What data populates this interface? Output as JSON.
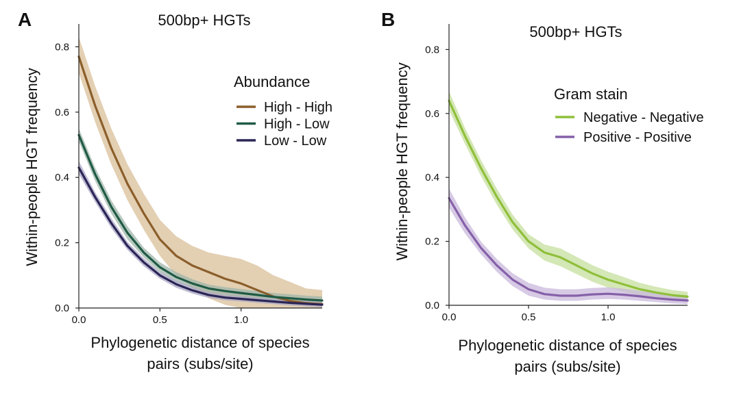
{
  "chart_data": [
    {
      "panel": "A",
      "type": "line",
      "title": "500bp+ HGTs",
      "xlabel_lines": [
        "Phylogenetic distance of species",
        "pairs (subs/site)"
      ],
      "ylabel": "Within-people HGT frequency",
      "xlim": [
        0,
        1.5
      ],
      "ylim": [
        0,
        0.87
      ],
      "xticks": [
        0.0,
        0.5,
        1.0
      ],
      "xtick_labels": [
        "0.0",
        "0.5",
        "1.0"
      ],
      "yticks": [
        0.0,
        0.2,
        0.4,
        0.6,
        0.8
      ],
      "ytick_labels": [
        "0.0",
        "0.2",
        "0.4",
        "0.6",
        "0.8"
      ],
      "grid": false,
      "legend": {
        "title": "Abundance",
        "position": "upper-right"
      },
      "x": [
        0.0,
        0.1,
        0.2,
        0.3,
        0.4,
        0.5,
        0.6,
        0.7,
        0.8,
        0.9,
        1.0,
        1.1,
        1.2,
        1.3,
        1.4,
        1.5
      ],
      "series": [
        {
          "name": "High - High",
          "color": "#8b5e2b",
          "band_color": "#d9bf98",
          "values": [
            0.77,
            0.62,
            0.49,
            0.38,
            0.29,
            0.21,
            0.16,
            0.13,
            0.11,
            0.09,
            0.075,
            0.055,
            0.035,
            0.022,
            0.015,
            0.012
          ],
          "lower": [
            0.72,
            0.57,
            0.44,
            0.33,
            0.24,
            0.16,
            0.1,
            0.06,
            0.03,
            0.01,
            0.0,
            0.0,
            0.0,
            0.0,
            0.0,
            0.0
          ],
          "upper": [
            0.83,
            0.68,
            0.55,
            0.44,
            0.35,
            0.27,
            0.22,
            0.19,
            0.17,
            0.16,
            0.15,
            0.13,
            0.1,
            0.08,
            0.06,
            0.055
          ]
        },
        {
          "name": "High - Low",
          "color": "#1f5a45",
          "band_color": "#9fb5aa",
          "values": [
            0.53,
            0.41,
            0.31,
            0.23,
            0.17,
            0.125,
            0.095,
            0.075,
            0.06,
            0.052,
            0.046,
            0.04,
            0.034,
            0.03,
            0.026,
            0.023
          ],
          "lower": [
            0.51,
            0.39,
            0.29,
            0.21,
            0.155,
            0.11,
            0.08,
            0.062,
            0.048,
            0.04,
            0.034,
            0.028,
            0.022,
            0.018,
            0.015,
            0.012
          ],
          "upper": [
            0.55,
            0.43,
            0.33,
            0.25,
            0.185,
            0.14,
            0.11,
            0.088,
            0.072,
            0.064,
            0.058,
            0.052,
            0.046,
            0.042,
            0.038,
            0.035
          ]
        },
        {
          "name": "Low - Low",
          "color": "#2a2555",
          "band_color": "#a8a6c4",
          "values": [
            0.43,
            0.34,
            0.26,
            0.19,
            0.14,
            0.1,
            0.073,
            0.054,
            0.04,
            0.032,
            0.028,
            0.024,
            0.02,
            0.016,
            0.013,
            0.01
          ],
          "lower": [
            0.41,
            0.325,
            0.245,
            0.178,
            0.128,
            0.09,
            0.062,
            0.044,
            0.031,
            0.024,
            0.02,
            0.016,
            0.012,
            0.008,
            0.005,
            0.003
          ],
          "upper": [
            0.45,
            0.355,
            0.275,
            0.202,
            0.152,
            0.11,
            0.084,
            0.064,
            0.049,
            0.04,
            0.036,
            0.032,
            0.028,
            0.024,
            0.021,
            0.018
          ]
        }
      ]
    },
    {
      "panel": "B",
      "type": "line",
      "title": "500bp+ HGTs",
      "xlabel_lines": [
        "Phylogenetic distance of species",
        "pairs (subs/site)"
      ],
      "ylabel": "Within-people HGT frequency",
      "xlim": [
        0,
        1.5
      ],
      "ylim": [
        0,
        0.88
      ],
      "xticks": [
        0.0,
        0.5,
        1.0
      ],
      "xtick_labels": [
        "0.0",
        "0.5",
        "1.0"
      ],
      "yticks": [
        0.0,
        0.2,
        0.4,
        0.6,
        0.8
      ],
      "ytick_labels": [
        "0.0",
        "0.2",
        "0.4",
        "0.6",
        "0.8"
      ],
      "grid": false,
      "legend": {
        "title": "Gram stain",
        "position": "upper-right"
      },
      "x": [
        0.0,
        0.1,
        0.2,
        0.3,
        0.4,
        0.5,
        0.6,
        0.7,
        0.8,
        0.9,
        1.0,
        1.1,
        1.2,
        1.3,
        1.4,
        1.5
      ],
      "series": [
        {
          "name": "Negative - Negative",
          "color": "#8fbf3a",
          "band_color": "#c6df9d",
          "values": [
            0.64,
            0.53,
            0.43,
            0.34,
            0.26,
            0.2,
            0.165,
            0.15,
            0.125,
            0.1,
            0.08,
            0.065,
            0.05,
            0.04,
            0.032,
            0.027
          ],
          "lower": [
            0.61,
            0.505,
            0.405,
            0.315,
            0.237,
            0.178,
            0.14,
            0.122,
            0.098,
            0.074,
            0.055,
            0.042,
            0.03,
            0.022,
            0.016,
            0.012
          ],
          "upper": [
            0.67,
            0.555,
            0.455,
            0.365,
            0.283,
            0.222,
            0.19,
            0.178,
            0.152,
            0.126,
            0.105,
            0.088,
            0.07,
            0.058,
            0.048,
            0.042
          ]
        },
        {
          "name": "Positive - Positive",
          "color": "#8560a8",
          "band_color": "#c9b8dc",
          "values": [
            0.335,
            0.25,
            0.18,
            0.125,
            0.08,
            0.05,
            0.035,
            0.03,
            0.03,
            0.034,
            0.036,
            0.033,
            0.028,
            0.022,
            0.018,
            0.015
          ],
          "lower": [
            0.305,
            0.225,
            0.16,
            0.105,
            0.06,
            0.03,
            0.018,
            0.014,
            0.014,
            0.018,
            0.02,
            0.018,
            0.014,
            0.01,
            0.006,
            0.004
          ],
          "upper": [
            0.365,
            0.275,
            0.2,
            0.145,
            0.1,
            0.07,
            0.055,
            0.05,
            0.05,
            0.054,
            0.056,
            0.052,
            0.045,
            0.038,
            0.032,
            0.028
          ]
        }
      ]
    }
  ]
}
